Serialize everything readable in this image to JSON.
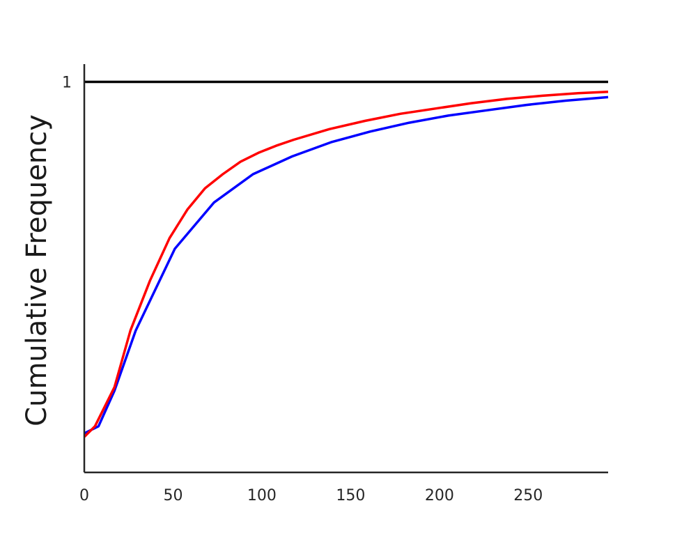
{
  "chart_data": {
    "type": "line",
    "title": "",
    "xlabel": "",
    "ylabel": "Cumulative Frequency",
    "xlim": [
      0,
      295
    ],
    "ylim": [
      -0.1,
      1.05
    ],
    "x_ticks": [
      "0",
      "50",
      "100",
      "150",
      "200",
      "250"
    ],
    "y_ticks": [
      "1"
    ],
    "grid": false,
    "reference_line": {
      "y": 1,
      "color": "#000000"
    },
    "series": [
      {
        "color": "#0000ff",
        "x": [
          0,
          8,
          17,
          29,
          51,
          73,
          95,
          117,
          139,
          161,
          183,
          205,
          227,
          249,
          271,
          295
        ],
        "y": [
          0.01,
          0.03,
          0.13,
          0.3,
          0.53,
          0.66,
          0.74,
          0.79,
          0.83,
          0.86,
          0.885,
          0.905,
          0.92,
          0.935,
          0.947,
          0.957
        ]
      },
      {
        "color": "#ff0000",
        "x": [
          0,
          6,
          17,
          26,
          37,
          48,
          58,
          68,
          78,
          88,
          98,
          108,
          118,
          138,
          158,
          178,
          198,
          218,
          238,
          258,
          278,
          295
        ],
        "y": [
          0.0,
          0.03,
          0.14,
          0.3,
          0.44,
          0.56,
          0.64,
          0.7,
          0.74,
          0.775,
          0.8,
          0.82,
          0.837,
          0.867,
          0.89,
          0.91,
          0.925,
          0.94,
          0.952,
          0.961,
          0.968,
          0.972
        ]
      }
    ]
  }
}
